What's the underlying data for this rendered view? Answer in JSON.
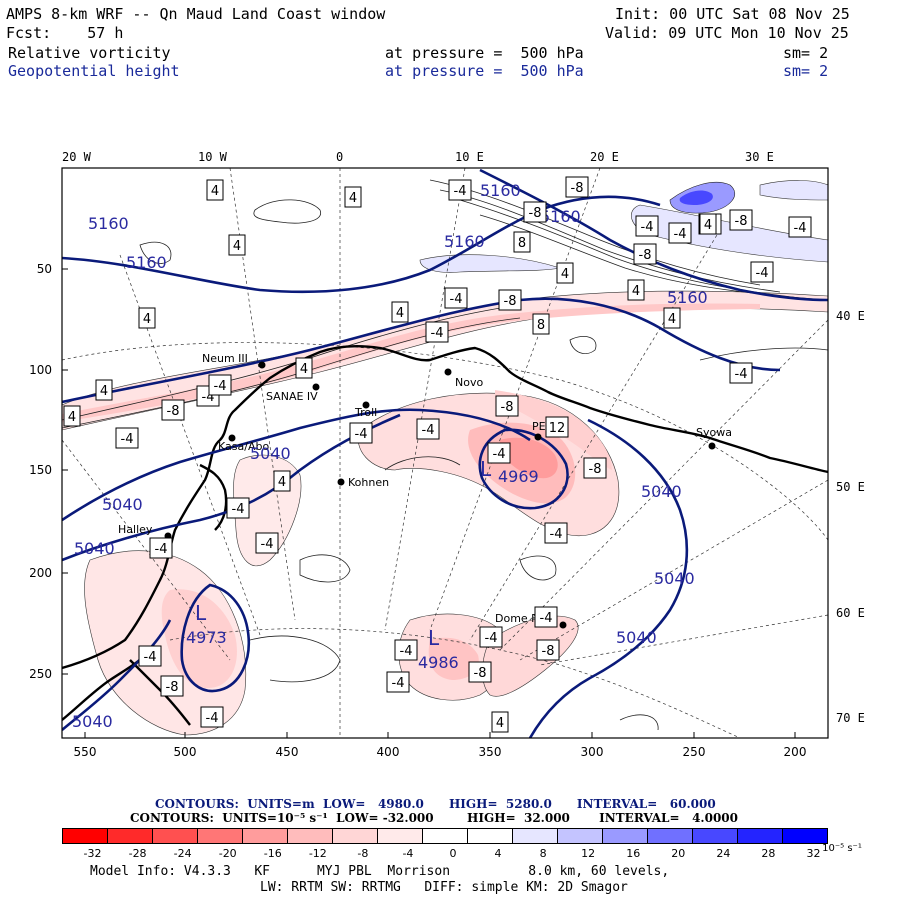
{
  "header": {
    "title": "AMPS 8-km WRF -- Qn Maud Land Coast window",
    "init": "Init: 00 UTC Sat 08 Nov 25",
    "fcst": "Fcst:    57 h",
    "valid": "Valid: 09 UTC Mon 10 Nov 25",
    "field1_name": "Relative vorticity",
    "field1_level": "at pressure =  500 hPa",
    "field1_sm": "sm= 2",
    "field2_name": "Geopotential height",
    "field2_level": "at pressure =  500 hPa",
    "field2_sm": "sm= 2"
  },
  "map": {
    "top_lon_labels": [
      "20 W",
      "10 W",
      "0",
      "10 E",
      "20 E",
      "30 E"
    ],
    "right_lon_labels": [
      "40 E",
      "50 E",
      "60 E",
      "70 E"
    ],
    "left_y_ticks": [
      "50",
      "100",
      "150",
      "200",
      "250"
    ],
    "bottom_x_ticks": [
      "550",
      "500",
      "450",
      "400",
      "350",
      "300",
      "250",
      "200"
    ],
    "stations": [
      "Neum III",
      "SANAE IV",
      "Troll",
      "Novo",
      "PE",
      "Syowa",
      "Kasa/Abo",
      "Kohnen",
      "Halley",
      "Dome Fuji"
    ],
    "height_contour_labels": [
      "5160",
      "5160",
      "5160",
      "5160",
      "5160",
      "5160",
      "5040",
      "5040",
      "5040",
      "5040",
      "5040",
      "5040",
      "5040",
      "4969",
      "4973",
      "4986"
    ],
    "lows": [
      "L",
      "L",
      "L"
    ],
    "vorticity_box_labels": [
      "4",
      "4",
      "4",
      "-8",
      "-8",
      "8",
      "4",
      "-4",
      "-4",
      "-4",
      "-8",
      "-4",
      "4",
      "4",
      "4",
      "-4",
      "-4",
      "-8",
      "4",
      "4",
      "-4",
      "8",
      "-4",
      "4",
      "-4",
      "-4",
      "-4",
      "-8",
      "-4",
      "-8",
      "4",
      "-4",
      "-4",
      "-4",
      "-4",
      "-8",
      "-8",
      "12",
      "-8",
      "-4",
      "-4",
      "-4",
      "-4",
      "-4",
      "-8",
      "-4",
      "-8",
      "4",
      "-4",
      "-4",
      "4",
      "4",
      "-4"
    ]
  },
  "footer": {
    "contours_height": "CONTOURS:  UNITS=m  LOW=   4980.0      HIGH=  5280.0      INTERVAL=   60.000",
    "contours_vort": "CONTOURS:  UNITS=10⁻⁵ s⁻¹  LOW= -32.000        HIGH=  32.000       INTERVAL=   4.0000",
    "colorbar_labels": [
      "-32",
      "-28",
      "-24",
      "-20",
      "-16",
      "-12",
      "-8",
      "-4",
      "0",
      "4",
      "8",
      "12",
      "16",
      "20",
      "24",
      "28",
      "32"
    ],
    "colorbar_unit": "10⁻⁵ s⁻¹",
    "colorbar_colors": [
      "#ff0000",
      "#ff2a2a",
      "#ff5050",
      "#ff7676",
      "#ff9c9c",
      "#ffbcbc",
      "#ffd6d6",
      "#ffeaea",
      "#ffffff",
      "#ffffff",
      "#e6e6ff",
      "#c4c4ff",
      "#9a9aff",
      "#7070ff",
      "#4848ff",
      "#2424ff",
      "#0000ff"
    ],
    "model_info_1": "Model Info: V4.3.3   KF      MYJ PBL  Morrison          8.0 km, 60 levels,",
    "model_info_2": "LW: RRTM SW: RRTMG   DIFF: simple KM: 2D Smagor"
  },
  "colors": {
    "height_contour": "#0a1a7a",
    "header_blue": "#1a2a9a",
    "coast": "#000000"
  }
}
